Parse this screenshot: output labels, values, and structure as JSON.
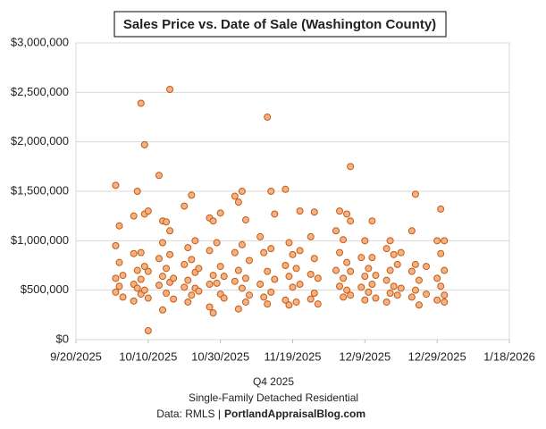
{
  "chart_data": {
    "type": "scatter",
    "title": "Sales Price vs. Date of Sale (Washington County)",
    "x_label": "Q4 2025",
    "notes": [
      "Single-Family Detached Residential"
    ],
    "source": "Data: RMLS |",
    "source_link": "PortlandAppraisalBlog.com",
    "color": "#f4b183",
    "edge_color": "#c55a11",
    "grid": true,
    "xlim": [
      "2025-09-20",
      "2026-01-18"
    ],
    "xticks": [
      {
        "value": "2025-09-20",
        "label": "9/20/2025"
      },
      {
        "value": "2025-10-10",
        "label": "10/10/2025"
      },
      {
        "value": "2025-10-30",
        "label": "10/30/2025"
      },
      {
        "value": "2025-11-19",
        "label": "11/19/2025"
      },
      {
        "value": "2025-12-09",
        "label": "12/9/2025"
      },
      {
        "value": "2025-12-29",
        "label": "12/29/2025"
      },
      {
        "value": "2026-01-18",
        "label": "1/18/2026"
      }
    ],
    "ylim": [
      0,
      3000000
    ],
    "yticks": [
      {
        "value": 0,
        "label": "$0"
      },
      {
        "value": 500000,
        "label": "$500,000"
      },
      {
        "value": 1000000,
        "label": "$1,000,000"
      },
      {
        "value": 1500000,
        "label": "$1,500,000"
      },
      {
        "value": 2000000,
        "label": "$2,000,000"
      },
      {
        "value": 2500000,
        "label": "$2,500,000"
      },
      {
        "value": 3000000,
        "label": "$3,000,000"
      }
    ],
    "x": [
      "2025-10-01",
      "2025-10-01",
      "2025-10-01",
      "2025-10-01",
      "2025-10-02",
      "2025-10-02",
      "2025-10-02",
      "2025-10-03",
      "2025-10-03",
      "2025-10-06",
      "2025-10-06",
      "2025-10-06",
      "2025-10-06",
      "2025-10-07",
      "2025-10-07",
      "2025-10-07",
      "2025-10-08",
      "2025-10-08",
      "2025-10-08",
      "2025-10-08",
      "2025-10-09",
      "2025-10-09",
      "2025-10-09",
      "2025-10-09",
      "2025-10-10",
      "2025-10-10",
      "2025-10-10",
      "2025-10-10",
      "2025-10-13",
      "2025-10-13",
      "2025-10-13",
      "2025-10-14",
      "2025-10-14",
      "2025-10-14",
      "2025-10-14",
      "2025-10-15",
      "2025-10-15",
      "2025-10-15",
      "2025-10-16",
      "2025-10-16",
      "2025-10-16",
      "2025-10-16",
      "2025-10-17",
      "2025-10-17",
      "2025-10-20",
      "2025-10-20",
      "2025-10-20",
      "2025-10-21",
      "2025-10-21",
      "2025-10-21",
      "2025-10-22",
      "2025-10-22",
      "2025-10-22",
      "2025-10-23",
      "2025-10-23",
      "2025-10-23",
      "2025-10-24",
      "2025-10-24",
      "2025-10-27",
      "2025-10-27",
      "2025-10-27",
      "2025-10-27",
      "2025-10-28",
      "2025-10-28",
      "2025-10-28",
      "2025-10-29",
      "2025-10-29",
      "2025-10-30",
      "2025-10-30",
      "2025-10-30",
      "2025-10-31",
      "2025-10-31",
      "2025-11-03",
      "2025-11-03",
      "2025-11-03",
      "2025-11-04",
      "2025-11-04",
      "2025-11-04",
      "2025-11-05",
      "2025-11-05",
      "2025-11-05",
      "2025-11-06",
      "2025-11-06",
      "2025-11-06",
      "2025-11-07",
      "2025-11-07",
      "2025-11-10",
      "2025-11-10",
      "2025-11-11",
      "2025-11-11",
      "2025-11-12",
      "2025-11-12",
      "2025-11-12",
      "2025-11-13",
      "2025-11-13",
      "2025-11-13",
      "2025-11-14",
      "2025-11-14",
      "2025-11-17",
      "2025-11-17",
      "2025-11-17",
      "2025-11-18",
      "2025-11-18",
      "2025-11-18",
      "2025-11-19",
      "2025-11-19",
      "2025-11-20",
      "2025-11-20",
      "2025-11-21",
      "2025-11-21",
      "2025-11-21",
      "2025-11-24",
      "2025-11-24",
      "2025-11-24",
      "2025-11-25",
      "2025-11-25",
      "2025-11-25",
      "2025-11-26",
      "2025-11-26",
      "2025-12-01",
      "2025-12-01",
      "2025-12-02",
      "2025-12-02",
      "2025-12-02",
      "2025-12-03",
      "2025-12-03",
      "2025-12-03",
      "2025-12-04",
      "2025-12-04",
      "2025-12-04",
      "2025-12-05",
      "2025-12-05",
      "2025-12-05",
      "2025-12-05",
      "2025-12-08",
      "2025-12-08",
      "2025-12-09",
      "2025-12-09",
      "2025-12-09",
      "2025-12-10",
      "2025-12-10",
      "2025-12-11",
      "2025-12-11",
      "2025-12-11",
      "2025-12-12",
      "2025-12-12",
      "2025-12-15",
      "2025-12-15",
      "2025-12-15",
      "2025-12-16",
      "2025-12-16",
      "2025-12-16",
      "2025-12-17",
      "2025-12-17",
      "2025-12-18",
      "2025-12-18",
      "2025-12-19",
      "2025-12-19",
      "2025-12-22",
      "2025-12-22",
      "2025-12-22",
      "2025-12-23",
      "2025-12-23",
      "2025-12-23",
      "2025-12-24",
      "2025-12-24",
      "2025-12-26",
      "2025-12-26",
      "2025-12-29",
      "2025-12-29",
      "2025-12-29",
      "2025-12-30",
      "2025-12-30",
      "2025-12-30",
      "2025-12-31",
      "2025-12-31",
      "2025-12-31",
      "2025-12-31"
    ],
    "values": [
      1560000,
      620000,
      480000,
      950000,
      780000,
      540000,
      1150000,
      650000,
      430000,
      870000,
      560000,
      1250000,
      390000,
      700000,
      1500000,
      520000,
      2390000,
      610000,
      880000,
      460000,
      1970000,
      740000,
      500000,
      1270000,
      90000,
      690000,
      420000,
      1300000,
      1660000,
      820000,
      550000,
      1200000,
      640000,
      300000,
      980000,
      1190000,
      720000,
      470000,
      2530000,
      1100000,
      580000,
      860000,
      620000,
      410000,
      760000,
      1350000,
      530000,
      930000,
      600000,
      380000,
      1460000,
      810000,
      450000,
      1000000,
      680000,
      520000,
      720000,
      490000,
      1230000,
      900000,
      560000,
      330000,
      1200000,
      650000,
      270000,
      980000,
      570000,
      1280000,
      740000,
      460000,
      640000,
      420000,
      1450000,
      880000,
      590000,
      1390000,
      700000,
      310000,
      1500000,
      960000,
      520000,
      1210000,
      620000,
      380000,
      800000,
      450000,
      1040000,
      560000,
      880000,
      430000,
      2250000,
      690000,
      360000,
      1500000,
      920000,
      480000,
      1270000,
      610000,
      1520000,
      750000,
      400000,
      980000,
      640000,
      350000,
      860000,
      530000,
      720000,
      380000,
      1300000,
      900000,
      560000,
      1040000,
      660000,
      410000,
      1290000,
      820000,
      470000,
      620000,
      360000,
      1100000,
      700000,
      1300000,
      880000,
      540000,
      1010000,
      620000,
      430000,
      1270000,
      780000,
      500000,
      1750000,
      1200000,
      690000,
      450000,
      830000,
      530000,
      1000000,
      640000,
      400000,
      720000,
      480000,
      1200000,
      830000,
      560000,
      650000,
      420000,
      920000,
      600000,
      380000,
      1000000,
      700000,
      470000,
      860000,
      540000,
      760000,
      450000,
      880000,
      520000,
      1100000,
      690000,
      430000,
      1470000,
      760000,
      500000,
      600000,
      350000,
      740000,
      460000,
      1000000,
      620000,
      400000,
      1320000,
      870000,
      540000,
      1000000,
      700000,
      450000,
      380000
    ]
  }
}
